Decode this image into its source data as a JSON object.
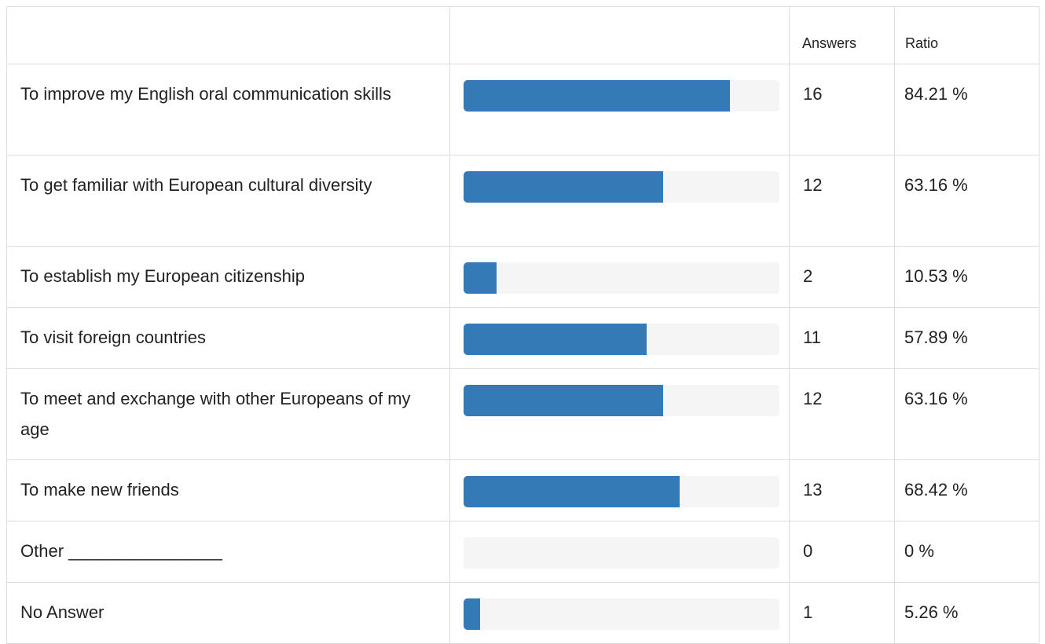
{
  "header": {
    "answers_label": "Answers",
    "ratio_label": "Ratio"
  },
  "colors": {
    "bar_fill": "#337ab7",
    "bar_track": "#f5f5f5"
  },
  "chart_data": {
    "type": "bar",
    "orientation": "horizontal",
    "categories": [
      "To improve my English oral communication skills",
      "To get familiar with European cultural diversity",
      "To establish my European citizenship",
      "To visit foreign countries",
      "To meet and exchange with other Europeans of my age",
      "To make new friends",
      "Other ________________",
      "No Answer"
    ],
    "answers": [
      "16",
      "12",
      "2",
      "11",
      "12",
      "13",
      "0",
      "1"
    ],
    "ratio_labels": [
      "84.21 %",
      "63.16 %",
      "10.53 %",
      "57.89 %",
      "63.16 %",
      "68.42 %",
      "0 %",
      "5.26 %"
    ],
    "values": [
      84.21,
      63.16,
      10.53,
      57.89,
      63.16,
      68.42,
      0,
      5.26
    ],
    "xlim": [
      0,
      100
    ]
  }
}
